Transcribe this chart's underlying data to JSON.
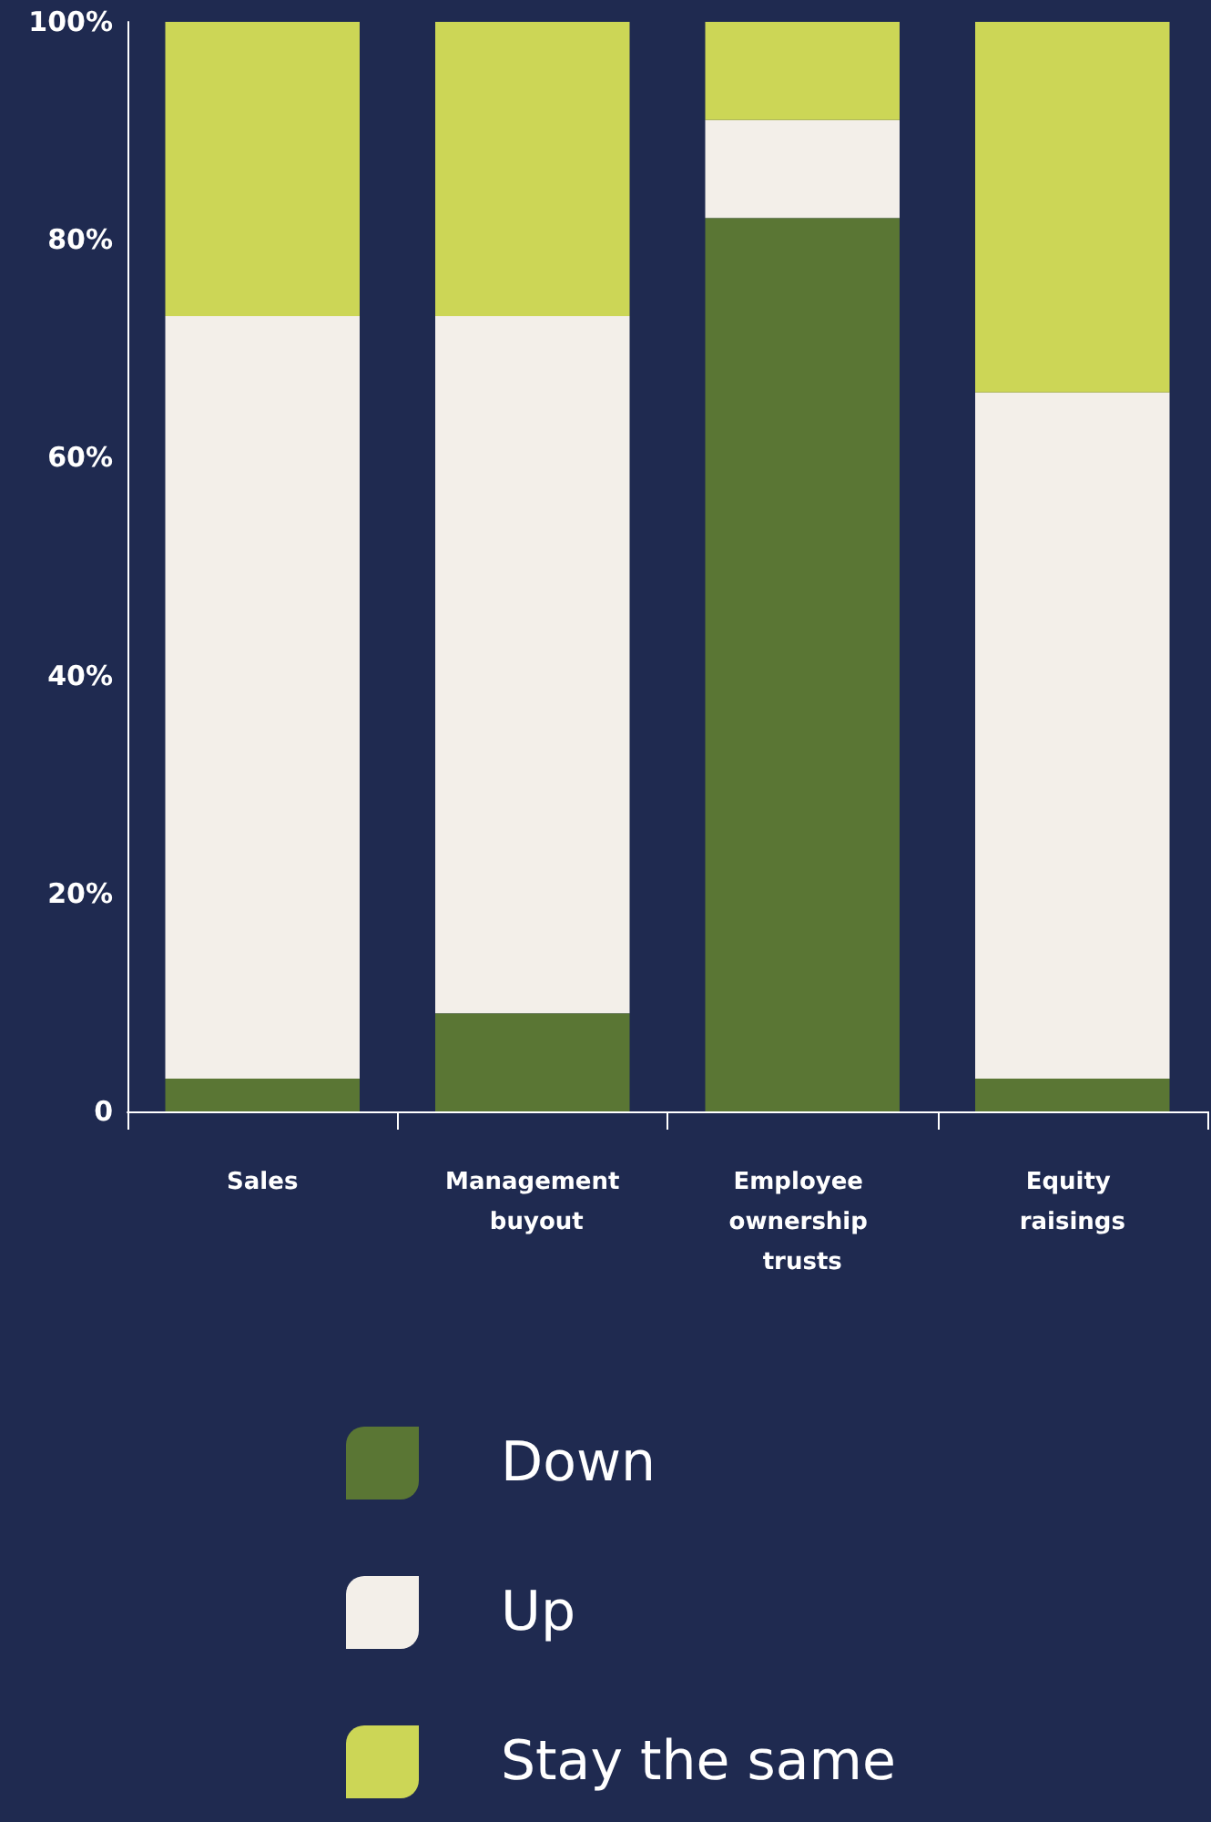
{
  "chart_data": {
    "type": "bar",
    "stacked": true,
    "categories": [
      "Sales",
      "Management buyout",
      "Employee ownership trusts",
      "Equity raisings"
    ],
    "series": [
      {
        "name": "Down",
        "color": "#5a7634",
        "values": [
          3,
          9,
          82,
          3
        ]
      },
      {
        "name": "Up",
        "color": "#f3efe9",
        "values": [
          70,
          64,
          9,
          63
        ]
      },
      {
        "name": "Stay the same",
        "color": "#ccd656",
        "values": [
          27,
          27,
          9,
          34
        ]
      }
    ],
    "ylim": [
      0,
      100
    ],
    "yticks": [
      {
        "value": 0,
        "label": "0"
      },
      {
        "value": 20,
        "label": "20%"
      },
      {
        "value": 40,
        "label": "40%"
      },
      {
        "value": 60,
        "label": "60%"
      },
      {
        "value": 80,
        "label": "80%"
      },
      {
        "value": 100,
        "label": "100%"
      }
    ],
    "grid": false,
    "legend": "bottom"
  }
}
